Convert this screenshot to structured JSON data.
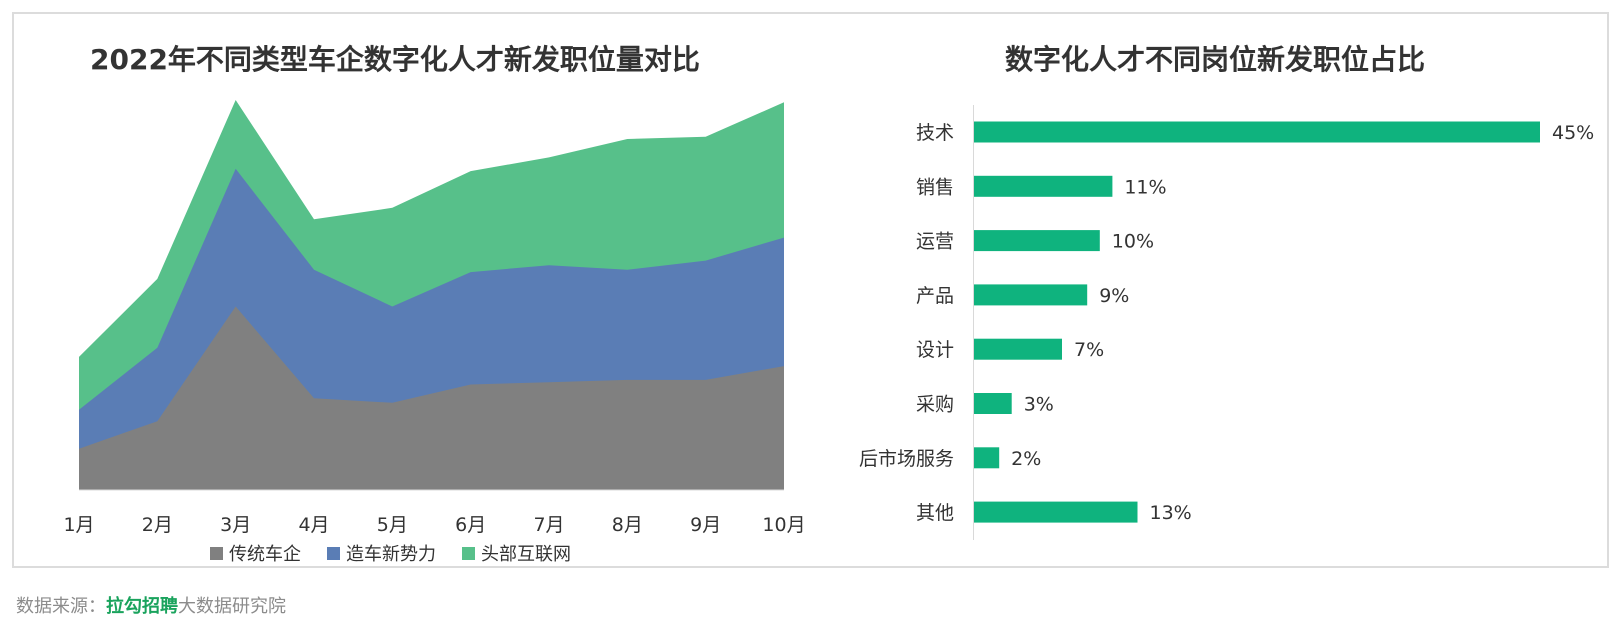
{
  "source": {
    "prefix": "数据来源：",
    "brand": "拉勾招聘",
    "suffix": "大数据研究院"
  },
  "colors": {
    "traditional": "#808080",
    "newforce": "#5a7db5",
    "internet": "#57c08a",
    "bar": "#0fb37e"
  },
  "chart_data": [
    {
      "type": "area",
      "stacked": true,
      "title": "2022年不同类型车企数字化人才新发职位量对比",
      "categories": [
        "1月",
        "2月",
        "3月",
        "4月",
        "5月",
        "6月",
        "7月",
        "8月",
        "9月",
        "10月"
      ],
      "series": [
        {
          "name": "传统车企",
          "values": [
            18,
            30,
            80,
            40,
            38,
            46,
            47,
            48,
            48,
            54
          ]
        },
        {
          "name": "造车新势力",
          "values": [
            35,
            62,
            140,
            96,
            80,
            95,
            98,
            96,
            100,
            110
          ]
        },
        {
          "name": "头部互联网",
          "values": [
            58,
            92,
            170,
            118,
            123,
            139,
            145,
            153,
            154,
            169
          ]
        }
      ],
      "legend_position": "bottom",
      "y_axis_visible": false,
      "grid": false
    },
    {
      "type": "bar",
      "orientation": "horizontal",
      "title": "数字化人才不同岗位新发职位占比",
      "categories": [
        "技术",
        "销售",
        "运营",
        "产品",
        "设计",
        "采购",
        "后市场服务",
        "其他"
      ],
      "values": [
        45,
        11,
        10,
        9,
        7,
        3,
        2,
        13
      ],
      "value_labels": [
        "45%",
        "11%",
        "10%",
        "9%",
        "7%",
        "3%",
        "2%",
        "13%"
      ],
      "unit": "%",
      "grid": false
    }
  ]
}
